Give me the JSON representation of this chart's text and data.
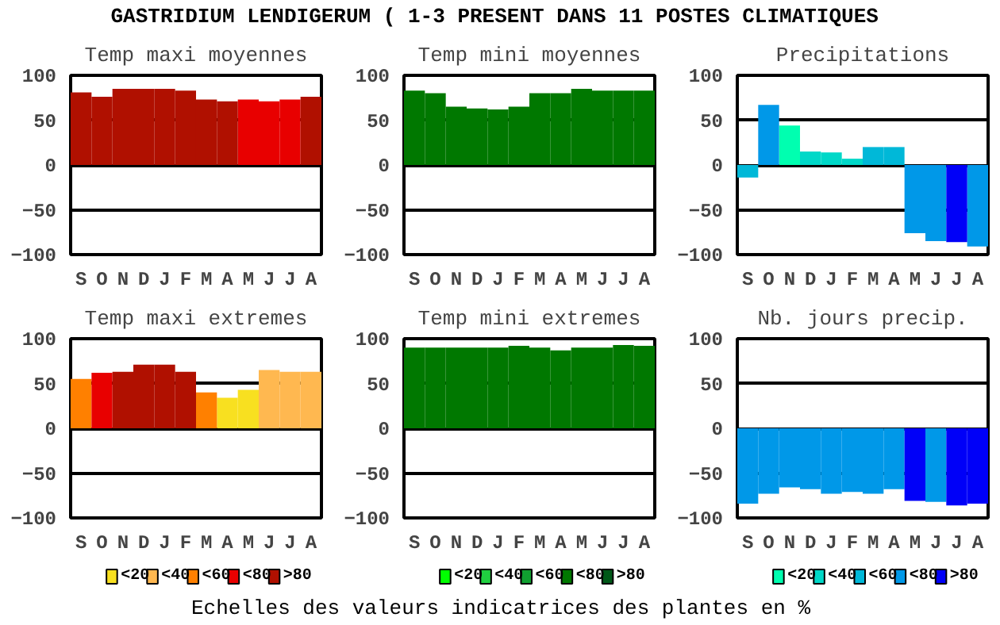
{
  "chart_data": [
    {
      "type": "bar",
      "title": "Temp maxi moyennes",
      "annotations": [
        "GASTRIDIUM LENDIGERUM ( 1-3 PRESENT DANS  11 POSTES CLIMATIQUES"
      ],
      "categories": [
        "S",
        "O",
        "N",
        "D",
        "J",
        "F",
        "M",
        "A",
        "M",
        "J",
        "J",
        "A"
      ],
      "ylim": [
        -100,
        100
      ],
      "yticks": [
        -100,
        -50,
        0,
        50,
        100
      ],
      "grid": "y",
      "legend": false,
      "series": [
        {
          "color": "#e80000",
          "values": [
            null,
            null,
            null,
            null,
            null,
            null,
            null,
            null,
            73,
            71,
            73,
            null
          ]
        },
        {
          "color": "#b01000",
          "values": [
            81,
            76,
            85,
            85,
            85,
            83,
            73,
            71,
            null,
            null,
            null,
            76
          ]
        }
      ]
    },
    {
      "type": "bar",
      "title": "Temp mini moyennes",
      "categories": [
        "S",
        "O",
        "N",
        "D",
        "J",
        "F",
        "M",
        "A",
        "M",
        "J",
        "J",
        "A"
      ],
      "ylim": [
        -100,
        100
      ],
      "yticks": [
        -100,
        -50,
        0,
        50,
        100
      ],
      "grid": "y",
      "legend": false,
      "series": [
        {
          "color": "#007800",
          "values": [
            83,
            80,
            65,
            63,
            62,
            65,
            80,
            80,
            85,
            83,
            83,
            83
          ]
        }
      ]
    },
    {
      "type": "bar",
      "title": "Precipitations",
      "categories": [
        "S",
        "O",
        "N",
        "D",
        "J",
        "F",
        "M",
        "A",
        "M",
        "J",
        "J",
        "A"
      ],
      "ylim": [
        -100,
        100
      ],
      "yticks": [
        -100,
        -50,
        0,
        50,
        100
      ],
      "grid": "y",
      "legend": false,
      "series": [
        {
          "color": "#00ffb0",
          "values": [
            null,
            null,
            44,
            null,
            null,
            null,
            null,
            null,
            null,
            null,
            null,
            null
          ]
        },
        {
          "color": "#00d8c8",
          "values": [
            null,
            null,
            null,
            15,
            14,
            7,
            null,
            null,
            null,
            null,
            null,
            null
          ]
        },
        {
          "color": "#00b8d8",
          "values": [
            -14,
            null,
            null,
            null,
            null,
            null,
            20,
            20,
            null,
            null,
            null,
            null
          ]
        },
        {
          "color": "#0098e8",
          "values": [
            null,
            67,
            null,
            null,
            null,
            null,
            null,
            null,
            -76,
            -85,
            null,
            -91
          ]
        },
        {
          "color": "#0000f8",
          "values": [
            null,
            null,
            null,
            null,
            null,
            null,
            null,
            null,
            null,
            null,
            -86,
            null
          ]
        }
      ]
    },
    {
      "type": "bar",
      "title": "Temp maxi extremes",
      "categories": [
        "S",
        "O",
        "N",
        "D",
        "J",
        "F",
        "M",
        "A",
        "M",
        "J",
        "J",
        "A"
      ],
      "ylim": [
        -100,
        100
      ],
      "yticks": [
        -100,
        -50,
        0,
        50,
        100
      ],
      "grid": "y",
      "legend": "bottom",
      "series": [
        {
          "name": "<20",
          "color": "#f8e020",
          "values": [
            null,
            null,
            null,
            null,
            null,
            null,
            null,
            34,
            43,
            null,
            null,
            null
          ]
        },
        {
          "name": "<40",
          "color": "#ffb850",
          "values": [
            null,
            null,
            null,
            null,
            null,
            null,
            null,
            null,
            null,
            65,
            63,
            63
          ]
        },
        {
          "name": "<60",
          "color": "#ff8000",
          "values": [
            55,
            null,
            null,
            null,
            null,
            null,
            40,
            null,
            null,
            null,
            null,
            null
          ]
        },
        {
          "name": "<80",
          "color": "#e80000",
          "values": [
            null,
            62,
            null,
            null,
            null,
            null,
            null,
            null,
            null,
            null,
            null,
            null
          ]
        },
        {
          "name": ">80",
          "color": "#b01000",
          "values": [
            null,
            null,
            63,
            71,
            71,
            63,
            null,
            null,
            null,
            null,
            null,
            null
          ]
        }
      ]
    },
    {
      "type": "bar",
      "title": "Temp mini extremes",
      "legend_title": "Echelles des valeurs indicatrices des plantes en %",
      "categories": [
        "S",
        "O",
        "N",
        "D",
        "J",
        "F",
        "M",
        "A",
        "M",
        "J",
        "J",
        "A"
      ],
      "ylim": [
        -100,
        100
      ],
      "yticks": [
        -100,
        -50,
        0,
        50,
        100
      ],
      "grid": "y",
      "legend": "bottom",
      "series": [
        {
          "name": "<20",
          "color": "#00ff00",
          "values": [
            null,
            null,
            null,
            null,
            null,
            null,
            null,
            null,
            null,
            null,
            null,
            null
          ]
        },
        {
          "name": "<40",
          "color": "#20d040",
          "values": [
            null,
            null,
            null,
            null,
            null,
            null,
            null,
            null,
            null,
            null,
            null,
            null
          ]
        },
        {
          "name": "<60",
          "color": "#10a030",
          "values": [
            null,
            null,
            null,
            null,
            null,
            null,
            null,
            null,
            null,
            null,
            null,
            null
          ]
        },
        {
          "name": "<80",
          "color": "#007800",
          "values": [
            90,
            90,
            90,
            90,
            90,
            92,
            90,
            87,
            90,
            90,
            93,
            92
          ]
        },
        {
          "name": ">80",
          "color": "#005818",
          "values": [
            null,
            null,
            null,
            null,
            null,
            null,
            null,
            null,
            null,
            null,
            null,
            null
          ]
        }
      ]
    },
    {
      "type": "bar",
      "title": "Nb. jours precip.",
      "categories": [
        "S",
        "O",
        "N",
        "D",
        "J",
        "F",
        "M",
        "A",
        "M",
        "J",
        "J",
        "A"
      ],
      "ylim": [
        -100,
        100
      ],
      "yticks": [
        -100,
        -50,
        0,
        50,
        100
      ],
      "grid": "y",
      "legend": "bottom",
      "series": [
        {
          "name": "<20",
          "color": "#00ffb0",
          "values": [
            null,
            null,
            null,
            null,
            null,
            null,
            null,
            null,
            null,
            null,
            null,
            null
          ]
        },
        {
          "name": "<40",
          "color": "#00d8c8",
          "values": [
            null,
            null,
            null,
            null,
            null,
            null,
            null,
            null,
            null,
            null,
            null,
            null
          ]
        },
        {
          "name": "<60",
          "color": "#00b8d8",
          "values": [
            null,
            null,
            null,
            null,
            null,
            null,
            null,
            null,
            null,
            null,
            null,
            null
          ]
        },
        {
          "name": "<80",
          "color": "#0098e8",
          "values": [
            -84,
            -73,
            -66,
            -68,
            -73,
            -71,
            -73,
            -68,
            null,
            -82,
            null,
            null
          ]
        },
        {
          "name": ">80",
          "color": "#0000f8",
          "values": [
            null,
            null,
            null,
            null,
            null,
            null,
            null,
            null,
            -81,
            null,
            -86,
            -84
          ]
        }
      ]
    }
  ]
}
